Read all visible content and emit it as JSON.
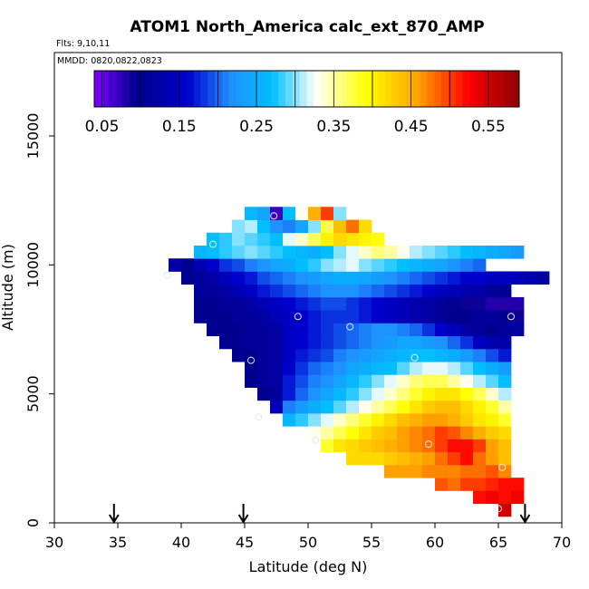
{
  "chart_data": {
    "type": "heatmap",
    "title": "ATOM1 North_America calc_ext_870_AMP",
    "flights_label": "Flts: 9,10,11",
    "dates_label": "MMDD: 0820,0822,0823",
    "xlabel": "Latitude (deg N)",
    "ylabel": "Altitude (m)",
    "xlim": [
      30,
      70
    ],
    "ylim": [
      0,
      18000
    ],
    "x_ticks": [
      30,
      35,
      40,
      45,
      50,
      55,
      60,
      65,
      70
    ],
    "y_ticks": [
      0,
      5000,
      10000,
      15000
    ],
    "colorbar": {
      "range": [
        0.04,
        0.59
      ],
      "tick_values": [
        0.05,
        0.15,
        0.25,
        0.35,
        0.45,
        0.55
      ],
      "tick_labels": [
        "0.05",
        "0.15",
        "0.25",
        "0.35",
        "0.45",
        "0.55"
      ],
      "colors": [
        "#7F00FF",
        "#00008B",
        "#0000CD",
        "#1E90FF",
        "#00BFFF",
        "#FFFFFF",
        "#FFFF00",
        "#FFA500",
        "#FF0000",
        "#8B0000"
      ],
      "color_stops": [
        0.0,
        0.1,
        0.22,
        0.32,
        0.42,
        0.52,
        0.64,
        0.76,
        0.88,
        1.0
      ]
    },
    "grid": {
      "lat_start": 39.0,
      "lat_step": 1.0,
      "alt_step": 500,
      "rows": [
        {
          "alt": 500,
          "lat_start": 65,
          "values": [
            0.55
          ]
        },
        {
          "alt": 1000,
          "lat_start": 63,
          "values": [
            0.52,
            0.53,
            0.52,
            0.53
          ]
        },
        {
          "alt": 1500,
          "lat_start": 60,
          "values": [
            0.49,
            0.48,
            0.5,
            0.5,
            0.51,
            0.52,
            0.52
          ]
        },
        {
          "alt": 2000,
          "lat_start": 56,
          "values": [
            0.46,
            0.46,
            0.46,
            0.47,
            0.47,
            0.47,
            0.48,
            0.48,
            0.49,
            0.47
          ]
        },
        {
          "alt": 2500,
          "lat_start": 53,
          "values": [
            0.42,
            0.42,
            0.42,
            0.43,
            0.44,
            0.45,
            0.46,
            0.48,
            0.5,
            0.52,
            0.48,
            0.46,
            0.44
          ]
        },
        {
          "alt": 3000,
          "lat_start": 51,
          "values": [
            0.38,
            0.41,
            0.42,
            0.43,
            0.44,
            0.45,
            0.46,
            0.47,
            0.48,
            0.5,
            0.52,
            0.52,
            0.5,
            0.46,
            0.44
          ]
        },
        {
          "alt": 3500,
          "lat_start": 50,
          "values": [
            0.33,
            0.35,
            0.37,
            0.39,
            0.41,
            0.43,
            0.44,
            0.46,
            0.47,
            0.48,
            0.5,
            0.49,
            0.47,
            0.45,
            0.43,
            0.42
          ]
        },
        {
          "alt": 4000,
          "lat_start": 48,
          "values": [
            0.26,
            0.28,
            0.3,
            0.32,
            0.34,
            0.36,
            0.38,
            0.4,
            0.42,
            0.44,
            0.45,
            0.46,
            0.46,
            0.45,
            0.43,
            0.41,
            0.4,
            0.38
          ]
        },
        {
          "alt": 4500,
          "lat_start": 47,
          "values": [
            0.14,
            0.21,
            0.23,
            0.25,
            0.27,
            0.29,
            0.31,
            0.33,
            0.35,
            0.37,
            0.39,
            0.41,
            0.43,
            0.44,
            0.44,
            0.42,
            0.4,
            0.38,
            0.35
          ]
        },
        {
          "alt": 5000,
          "lat_start": 46,
          "values": [
            0.1,
            0.11,
            0.17,
            0.2,
            0.22,
            0.24,
            0.26,
            0.28,
            0.3,
            0.32,
            0.34,
            0.36,
            0.38,
            0.4,
            0.41,
            0.41,
            0.39,
            0.37,
            0.34,
            0.31
          ]
        },
        {
          "alt": 5500,
          "lat_start": 45,
          "values": [
            0.1,
            0.11,
            0.12,
            0.17,
            0.19,
            0.21,
            0.22,
            0.24,
            0.26,
            0.28,
            0.3,
            0.32,
            0.34,
            0.36,
            0.37,
            0.37,
            0.35,
            0.33,
            0.31,
            0.29,
            0.27
          ]
        },
        {
          "alt": 6000,
          "lat_start": 45,
          "values": [
            0.1,
            0.11,
            0.12,
            0.16,
            0.18,
            0.2,
            0.21,
            0.22,
            0.24,
            0.25,
            0.26,
            0.27,
            0.29,
            0.31,
            0.32,
            0.32,
            0.31,
            0.29,
            0.27,
            0.25,
            0.23
          ]
        },
        {
          "alt": 6500,
          "lat_start": 44,
          "values": [
            0.1,
            0.1,
            0.11,
            0.12,
            0.15,
            0.17,
            0.18,
            0.19,
            0.21,
            0.22,
            0.23,
            0.24,
            0.25,
            0.26,
            0.27,
            0.27,
            0.26,
            0.25,
            0.23,
            0.21,
            0.19,
            0.17
          ]
        },
        {
          "alt": 7000,
          "lat_start": 43,
          "values": [
            0.1,
            0.1,
            0.11,
            0.11,
            0.12,
            0.15,
            0.16,
            0.17,
            0.18,
            0.19,
            0.2,
            0.21,
            0.22,
            0.23,
            0.24,
            0.24,
            0.23,
            0.22,
            0.2,
            0.18,
            0.15,
            0.13,
            0.12
          ]
        },
        {
          "alt": 7500,
          "lat_start": 42,
          "values": [
            0.1,
            0.1,
            0.1,
            0.11,
            0.11,
            0.12,
            0.15,
            0.16,
            0.17,
            0.18,
            0.19,
            0.2,
            0.21,
            0.22,
            0.22,
            0.21,
            0.2,
            0.18,
            0.16,
            0.14,
            0.12,
            0.11,
            0.1,
            0.11,
            0.12
          ]
        },
        {
          "alt": 8000,
          "lat_start": 41,
          "values": [
            0.1,
            0.1,
            0.1,
            0.11,
            0.11,
            0.12,
            0.14,
            0.15,
            0.16,
            0.17,
            0.18,
            0.18,
            0.18,
            0.17,
            0.16,
            0.15,
            0.14,
            0.13,
            0.12,
            0.11,
            0.1,
            0.1,
            0.11,
            0.11,
            0.1,
            0.09
          ]
        },
        {
          "alt": 8500,
          "lat_start": 41,
          "values": [
            0.1,
            0.1,
            0.11,
            0.11,
            0.12,
            0.14,
            0.15,
            0.16,
            0.17,
            0.18,
            0.19,
            0.19,
            0.18,
            0.17,
            0.16,
            0.15,
            0.14,
            0.13,
            0.12,
            0.11,
            0.1,
            0.09,
            0.09,
            0.08,
            0.08,
            0.08
          ]
        },
        {
          "alt": 9000,
          "lat_start": 41,
          "values": [
            0.11,
            0.11,
            0.12,
            0.14,
            0.15,
            0.17,
            0.18,
            0.19,
            0.2,
            0.21,
            0.22,
            0.22,
            0.22,
            0.21,
            0.2,
            0.19,
            0.18,
            0.17,
            0.16,
            0.15,
            0.14,
            0.13,
            0.12,
            0.11,
            0.1
          ]
        },
        {
          "alt": 9500,
          "lat_start": 40,
          "values": [
            0.1,
            0.11,
            0.12,
            0.14,
            0.16,
            0.17,
            0.19,
            0.2,
            0.21,
            0.22,
            0.23,
            0.24,
            0.25,
            0.25,
            0.24,
            0.23,
            0.22,
            0.21,
            0.2,
            0.19,
            0.18,
            0.17,
            0.16,
            0.16,
            0.15,
            0.15,
            0.14,
            0.13,
            0.12
          ]
        },
        {
          "alt": 10000,
          "lat_start": 39,
          "values": [
            0.12,
            0.1,
            0.13,
            0.16,
            0.18,
            0.19,
            0.21,
            0.22,
            0.24,
            0.25,
            0.27,
            0.28,
            0.3,
            0.31,
            0.32,
            0.3,
            0.29,
            0.28,
            0.27,
            0.26,
            0.25,
            0.24,
            0.22,
            0.21,
            0.2
          ]
        },
        {
          "alt": 10500,
          "lat_start": 41,
          "values": [
            0.26,
            0.27,
            0.28,
            0.29,
            0.3,
            0.29,
            0.28,
            0.27,
            0.26,
            0.25,
            0.27,
            0.3,
            0.32,
            0.34,
            0.36,
            0.35,
            0.33,
            0.31,
            0.3,
            0.29,
            0.28,
            0.27,
            0.26,
            0.25,
            0.24,
            0.23
          ]
        },
        {
          "alt": 11000,
          "lat_start": 42,
          "values": [
            0.27,
            0.28,
            0.3,
            0.29,
            0.28,
            0.27,
            0.32,
            0.34,
            0.37,
            0.4,
            0.42,
            0.41,
            0.4,
            0.39
          ]
        },
        {
          "alt": 11500,
          "lat_start": 44,
          "values": [
            0.3,
            0.31,
            0.27,
            0.22,
            0.21,
            0.24,
            0.3,
            0.38,
            0.44,
            0.48,
            0.42
          ]
        },
        {
          "alt": 12000,
          "lat_start": 45,
          "values": [
            0.26,
            0.24,
            0.07,
            0.27,
            0.33,
            0.45,
            0.5,
            0.3
          ]
        }
      ]
    },
    "flight_points": [
      {
        "lat": 47.3,
        "alt": 11900
      },
      {
        "lat": 51.7,
        "alt": 11500
      },
      {
        "lat": 42.5,
        "alt": 10800
      },
      {
        "lat": 38.9,
        "alt": 9600
      },
      {
        "lat": 49.2,
        "alt": 8000
      },
      {
        "lat": 53.3,
        "alt": 7600
      },
      {
        "lat": 66.0,
        "alt": 8000
      },
      {
        "lat": 45.5,
        "alt": 6300
      },
      {
        "lat": 58.4,
        "alt": 6400
      },
      {
        "lat": 46.1,
        "alt": 4100
      },
      {
        "lat": 50.6,
        "alt": 3200
      },
      {
        "lat": 59.5,
        "alt": 3050
      },
      {
        "lat": 65.3,
        "alt": 2150
      },
      {
        "lat": 65.0,
        "alt": 550
      }
    ],
    "arrow_latitudes": [
      34.7,
      44.9,
      67.1
    ]
  }
}
